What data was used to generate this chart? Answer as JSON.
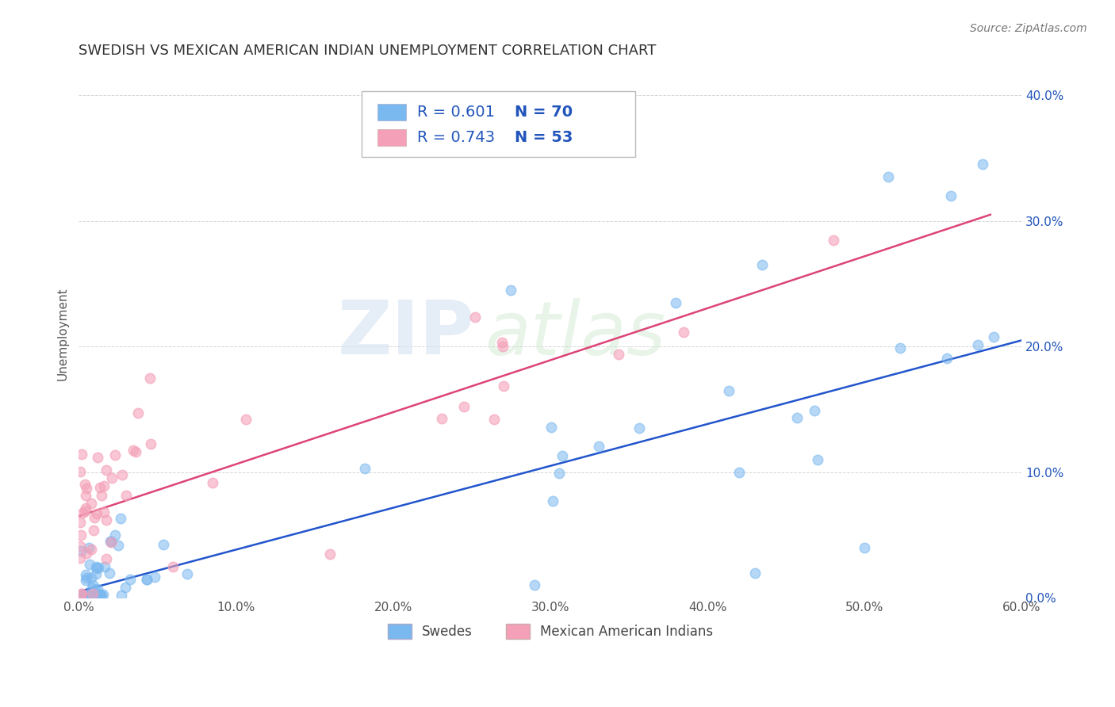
{
  "title": "SWEDISH VS MEXICAN AMERICAN INDIAN UNEMPLOYMENT CORRELATION CHART",
  "source": "Source: ZipAtlas.com",
  "ylabel": "Unemployment",
  "legend_r1": "R = 0.601",
  "legend_n1": "N = 70",
  "legend_r2": "R = 0.743",
  "legend_n2": "N = 53",
  "legend_label1": "Swedes",
  "legend_label2": "Mexican American Indians",
  "color_blue": "#7ab8f0",
  "color_pink": "#f4a0b8",
  "color_blue_line": "#2255cc",
  "color_pink_line": "#dd4477",
  "color_rn_text": "#2255cc",
  "watermark_zip": "ZIP",
  "watermark_atlas": "atlas",
  "xlim": [
    0.0,
    0.6
  ],
  "ylim": [
    0.0,
    0.42
  ],
  "blue_line_x": [
    0.0,
    0.6
  ],
  "blue_line_y": [
    0.005,
    0.205
  ],
  "pink_line_x": [
    0.0,
    0.58
  ],
  "pink_line_y": [
    0.065,
    0.305
  ],
  "bg_color": "#ffffff",
  "grid_color": "#cccccc",
  "title_fontsize": 13,
  "axis_label_fontsize": 11,
  "tick_fontsize": 11,
  "legend_text_color": "#2255bb",
  "rn_text_color": "#2255bb"
}
